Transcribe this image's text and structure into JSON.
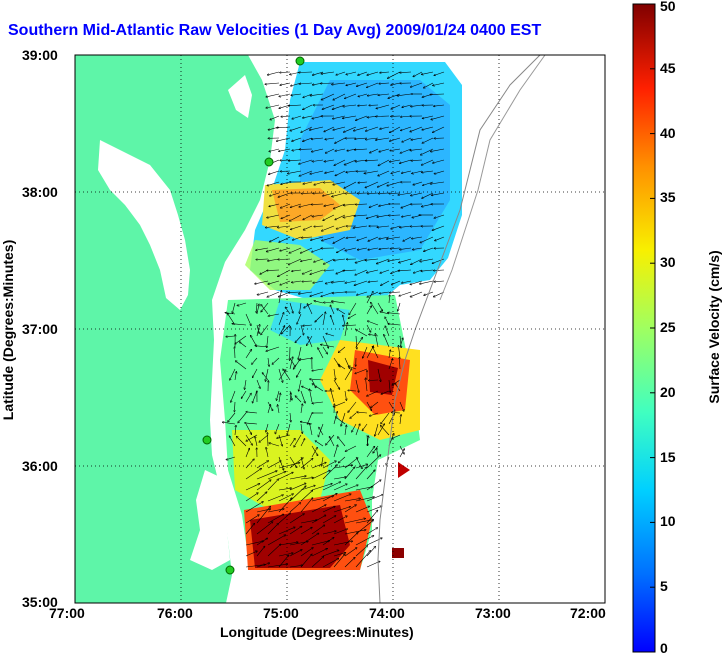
{
  "title": "Southern Mid-Atlantic Raw Velocities (1 Day Avg) 2009/01/24 0400 EST",
  "map": {
    "xlabel": "Longitude (Degrees:Minutes)",
    "ylabel": "Latitude (Degrees:Minutes)",
    "x_ticks": [
      "77:00",
      "76:00",
      "75:00",
      "74:00",
      "73:00",
      "72:00"
    ],
    "y_ticks": [
      "39:00",
      "38:00",
      "37:00",
      "36:00",
      "35:00"
    ],
    "colors": {
      "land": "#5ef5a8",
      "water": "#ffffff",
      "grid": "#000000"
    }
  },
  "colorbar": {
    "label": "Surface Velocity (cm/s)",
    "min": 0,
    "max": 50,
    "ticks": [
      "0",
      "5",
      "10",
      "15",
      "20",
      "25",
      "30",
      "35",
      "40",
      "45",
      "50"
    ],
    "colormap": "jet"
  }
}
